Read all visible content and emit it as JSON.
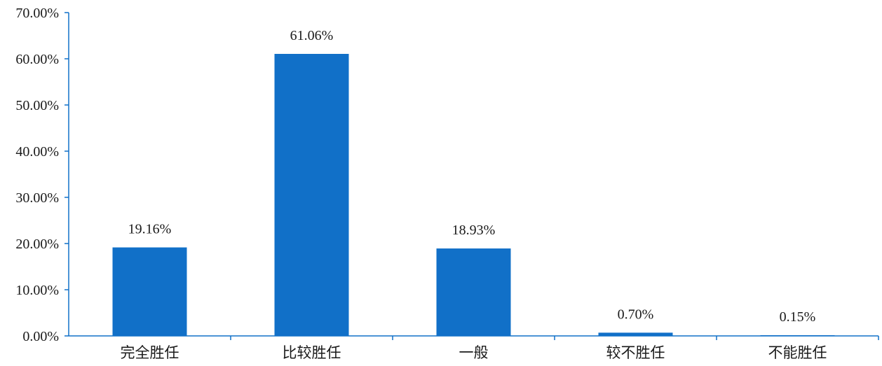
{
  "chart_data": {
    "type": "bar",
    "categories": [
      "完全胜任",
      "比较胜任",
      "一般",
      "较不胜任",
      "不能胜任"
    ],
    "values": [
      19.16,
      61.06,
      18.93,
      0.7,
      0.15
    ],
    "value_labels": [
      "19.16%",
      "61.06%",
      "18.93%",
      "0.70%",
      "0.15%"
    ],
    "title": "",
    "xlabel": "",
    "ylabel": "",
    "ylim": [
      0,
      70
    ],
    "yticks": [
      0,
      10,
      20,
      30,
      40,
      50,
      60,
      70
    ],
    "ytick_labels": [
      "0.00%",
      "10.00%",
      "20.00%",
      "30.00%",
      "40.00%",
      "50.00%",
      "60.00%",
      "70.00%"
    ],
    "grid": false,
    "legend": "none",
    "bar_color": "#1170C8",
    "axis_color": "#1170C8"
  }
}
